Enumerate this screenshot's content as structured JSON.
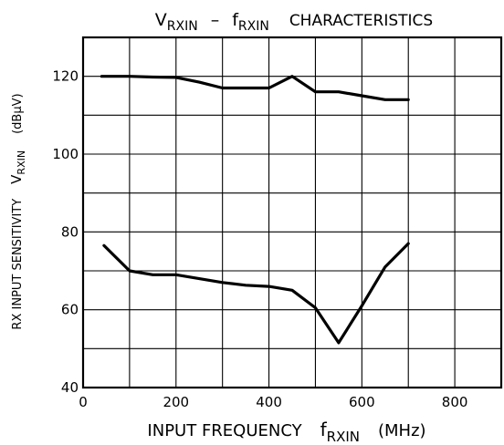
{
  "chart_data": {
    "type": "line",
    "title": {
      "v": "V",
      "v_sub": "RXIN",
      "dash": "–",
      "f": "f",
      "f_sub": "RXIN",
      "rest": "CHARACTERISTICS"
    },
    "xlabel": {
      "main": "INPUT FREQUENCY",
      "f": "f",
      "f_sub": "RXIN",
      "unit": "(MHz)"
    },
    "ylabel": {
      "main": "RX INPUT SENSITIVITY",
      "v": "V",
      "v_sub": "RXIN",
      "unit": "(dBμV)"
    },
    "xlim": [
      0,
      900
    ],
    "ylim": [
      40,
      130
    ],
    "x_ticks": [
      0,
      200,
      400,
      600,
      800
    ],
    "y_ticks": [
      40,
      60,
      80,
      100,
      120
    ],
    "x_grid": [
      0,
      100,
      200,
      300,
      400,
      500,
      600,
      700,
      800,
      900
    ],
    "y_grid": [
      40,
      50,
      60,
      70,
      80,
      90,
      100,
      110,
      120,
      130
    ],
    "grid": true,
    "series": [
      {
        "x": [
          40,
          100,
          150,
          200,
          250,
          300,
          400,
          450,
          500,
          550,
          600,
          650,
          700
        ],
        "y": [
          120,
          120,
          119.8,
          119.7,
          118.5,
          117,
          117,
          120,
          116,
          116,
          115,
          114,
          114
        ]
      },
      {
        "x": [
          45,
          100,
          150,
          200,
          300,
          350,
          400,
          450,
          500,
          550,
          600,
          650,
          700
        ],
        "y": [
          76.5,
          70,
          69,
          69,
          67,
          66.3,
          66,
          65,
          60.5,
          51.5,
          61,
          71,
          77
        ]
      }
    ],
    "colors": {
      "line": "#000000",
      "grid": "#000000"
    }
  }
}
